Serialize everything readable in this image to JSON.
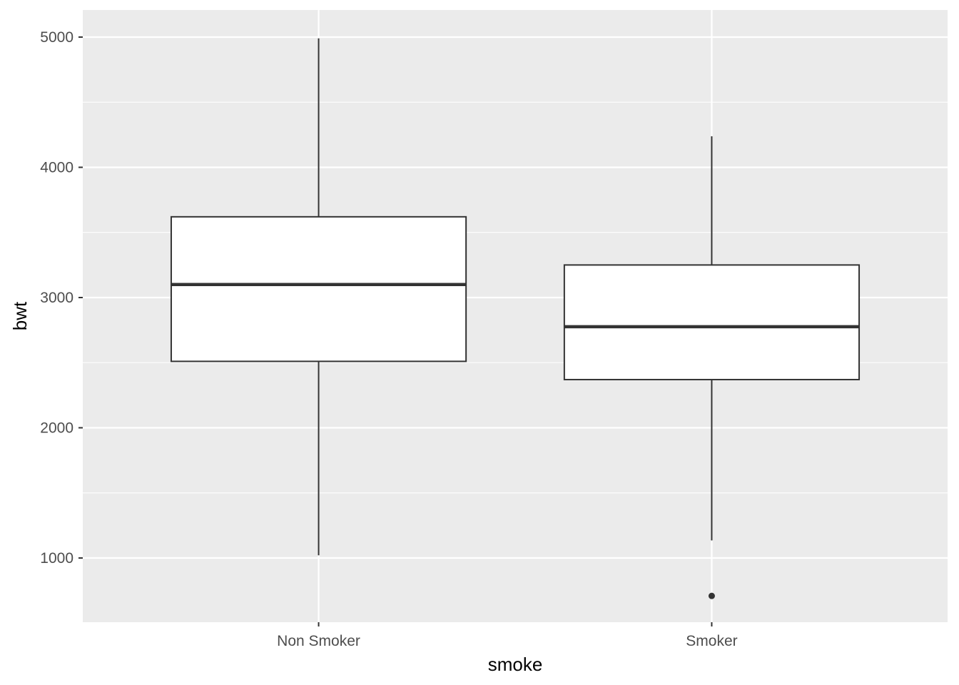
{
  "chart_data": {
    "type": "boxplot",
    "xlabel": "smoke",
    "ylabel": "bwt",
    "ylim": [
      507,
      5208
    ],
    "yticks": [
      1000,
      2000,
      3000,
      4000,
      5000
    ],
    "grid": true,
    "categories": [
      "Non Smoker",
      "Smoker"
    ],
    "boxes": [
      {
        "category": "Non Smoker",
        "whisker_low": 1021,
        "q1": 2510,
        "median": 3100,
        "q3": 3620,
        "whisker_high": 4990,
        "outliers": []
      },
      {
        "category": "Smoker",
        "whisker_low": 1135,
        "q1": 2370,
        "median": 2776,
        "q3": 3250,
        "whisker_high": 4238,
        "outliers": [
          709
        ]
      }
    ],
    "colors": {
      "panel": "#ebebeb",
      "grid": "#ffffff",
      "box_fill": "#ffffff",
      "box_line": "#333333"
    }
  }
}
